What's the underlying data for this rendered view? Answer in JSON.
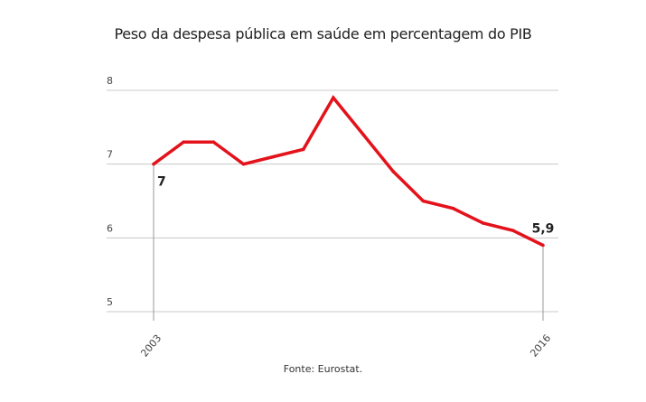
{
  "title": "Peso da despesa pública em saúde em percentagem do PIB",
  "source": "Fonte: Eurostat.",
  "colors": {
    "line": "#e3121b",
    "grid": "#c8c8c8",
    "axis": "#999999"
  },
  "chart_data": {
    "type": "line",
    "title": "Peso da despesa pública em saúde em percentagem do PIB",
    "xlabel": "",
    "ylabel": "",
    "x": [
      2003,
      2004,
      2005,
      2006,
      2007,
      2008,
      2009,
      2010,
      2011,
      2012,
      2013,
      2014,
      2015,
      2016
    ],
    "x_tick_labels": [
      "2003",
      "2016"
    ],
    "y_ticks": [
      5,
      6,
      7,
      8
    ],
    "y_tick_labels": [
      "5",
      "6",
      "7",
      "8"
    ],
    "ylim": [
      5,
      8
    ],
    "grid": true,
    "series": [
      {
        "values": [
          7.0,
          7.3,
          7.3,
          7.0,
          7.1,
          7.2,
          7.9,
          7.4,
          6.9,
          6.5,
          6.4,
          6.2,
          6.1,
          5.9
        ]
      }
    ],
    "annotations": [
      {
        "x": 2003,
        "y": 7.0,
        "text": "7"
      },
      {
        "x": 2016,
        "y": 5.9,
        "text": "5,9"
      }
    ]
  }
}
